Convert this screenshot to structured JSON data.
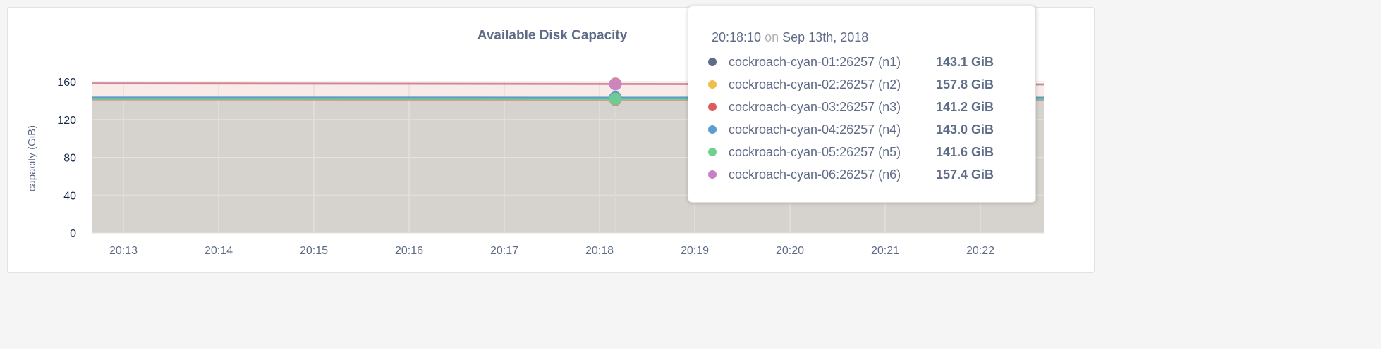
{
  "chart_data": {
    "type": "area",
    "title": "Available Disk Capacity",
    "ylabel": "capacity (GiB)",
    "ylim": [
      0,
      160
    ],
    "yticks": [
      "0",
      "40",
      "80",
      "120",
      "160"
    ],
    "xlim": [
      "20:12:40",
      "20:22:40"
    ],
    "xticks": [
      "20:13",
      "20:14",
      "20:15",
      "20:16",
      "20:17",
      "20:18",
      "20:19",
      "20:20",
      "20:21",
      "20:22"
    ],
    "grid": true,
    "x": [
      "20:12:40",
      "20:18:10",
      "20:22:40"
    ],
    "series": [
      {
        "name": "cockroach-cyan-01:26257 (n1)",
        "color": "#5f6c87",
        "values": [
          143.2,
          143.1,
          143.0
        ]
      },
      {
        "name": "cockroach-cyan-02:26257 (n2)",
        "color": "#f0be4a",
        "values": [
          158.5,
          157.8,
          157.3
        ]
      },
      {
        "name": "cockroach-cyan-03:26257 (n3)",
        "color": "#e05c5c",
        "values": [
          141.3,
          141.2,
          141.1
        ]
      },
      {
        "name": "cockroach-cyan-04:26257 (n4)",
        "color": "#5e9bd0",
        "values": [
          143.1,
          143.0,
          142.9
        ]
      },
      {
        "name": "cockroach-cyan-05:26257 (n5)",
        "color": "#6fd08f",
        "values": [
          141.7,
          141.6,
          141.5
        ]
      },
      {
        "name": "cockroach-cyan-06:26257 (n6)",
        "color": "#c97fc6",
        "values": [
          158.0,
          157.4,
          156.9
        ]
      }
    ]
  },
  "tooltip": {
    "time": "20:18:10",
    "on": "on",
    "date": "Sep 13th, 2018",
    "rows": [
      {
        "name": "cockroach-cyan-01:26257 (n1)",
        "value": "143.1 GiB",
        "color": "#5f6c87"
      },
      {
        "name": "cockroach-cyan-02:26257 (n2)",
        "value": "157.8 GiB",
        "color": "#f0be4a"
      },
      {
        "name": "cockroach-cyan-03:26257 (n3)",
        "value": "141.2 GiB",
        "color": "#e05c5c"
      },
      {
        "name": "cockroach-cyan-04:26257 (n4)",
        "value": "143.0 GiB",
        "color": "#5e9bd0"
      },
      {
        "name": "cockroach-cyan-05:26257 (n5)",
        "value": "141.6 GiB",
        "color": "#6fd08f"
      },
      {
        "name": "cockroach-cyan-06:26257 (n6)",
        "value": "157.4 GiB",
        "color": "#c97fc6"
      }
    ]
  }
}
